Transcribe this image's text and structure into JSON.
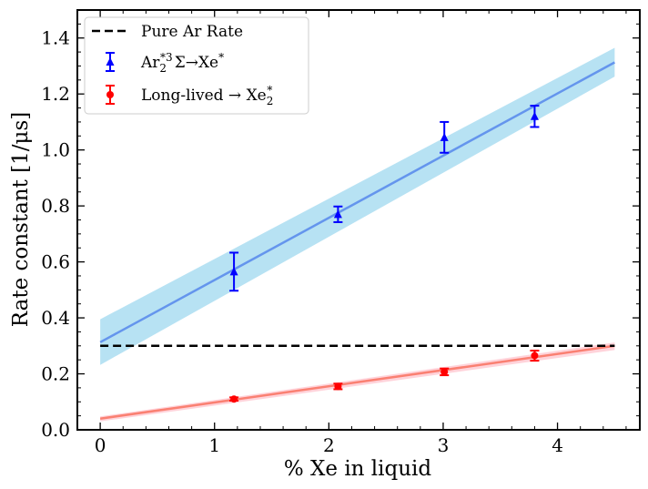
{
  "chart_data": {
    "type": "line",
    "title": "",
    "xlabel": "% Xe in liquid",
    "ylabel": "Rate constant [1/μs]",
    "xlim": [
      -0.2,
      4.72
    ],
    "ylim": [
      0.0,
      1.5
    ],
    "xticks": [
      0,
      1,
      2,
      3,
      4
    ],
    "yticks": [
      0.0,
      0.2,
      0.4,
      0.6,
      0.8,
      1.0,
      1.2,
      1.4
    ],
    "xtick_labels": [
      "0",
      "1",
      "2",
      "3",
      "4"
    ],
    "ytick_labels": [
      "0.0",
      "0.2",
      "0.4",
      "0.6",
      "0.8",
      "1.0",
      "1.2",
      "1.4"
    ],
    "legend_position": "top-left",
    "reference_line": {
      "name": "Pure Ar Rate",
      "y": 0.3,
      "x_range": [
        0,
        4.5
      ],
      "color": "#000000"
    },
    "series": [
      {
        "name": "Ar2*3Σ → Xe*",
        "legend_main": "Ar",
        "legend_sub": "2",
        "legend_sup": "*3",
        "legend_rest": "Σ→Xe",
        "legend_tail_sup": "*",
        "marker": "triangle",
        "color": "#0000ff",
        "x": [
          1.17,
          2.08,
          3.01,
          3.8
        ],
        "y": [
          0.565,
          0.77,
          1.045,
          1.12
        ],
        "yerr": [
          0.068,
          0.028,
          0.055,
          0.038
        ],
        "fit": {
          "x": [
            0,
            4.5
          ],
          "y": [
            0.313,
            1.313
          ],
          "band_low": [
            0.232,
            1.262
          ],
          "band_high": [
            0.395,
            1.365
          ],
          "line_color": "#6495ed",
          "band_color": "#87ceeb"
        }
      },
      {
        "name": "Long-lived → Xe2*",
        "legend_main": "Long-lived → Xe",
        "legend_sub": "2",
        "legend_sup": "*",
        "marker": "circle",
        "color": "#ff0000",
        "x": [
          1.17,
          2.08,
          3.01,
          3.8
        ],
        "y": [
          0.11,
          0.155,
          0.207,
          0.265
        ],
        "yerr": [
          0.006,
          0.01,
          0.012,
          0.018
        ],
        "fit": {
          "x": [
            0,
            4.5
          ],
          "y": [
            0.04,
            0.3
          ],
          "band_low": [
            0.03,
            0.285
          ],
          "band_high": [
            0.048,
            0.312
          ],
          "line_color": "#fa8072",
          "band_color": "#ffb6c1"
        }
      }
    ]
  }
}
